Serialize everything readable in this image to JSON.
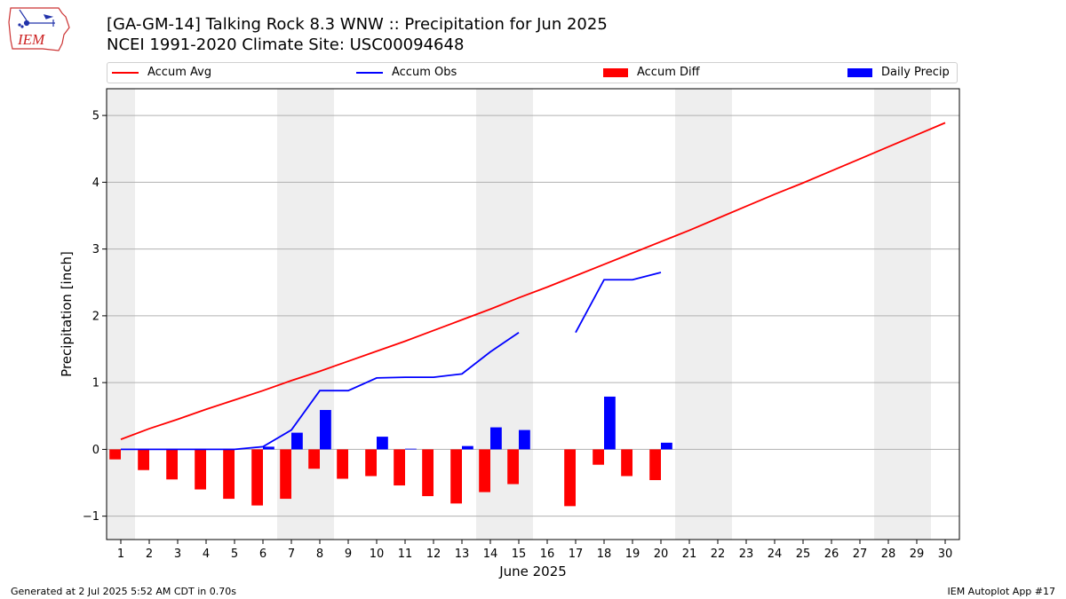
{
  "header": {
    "title_line1": "[GA-GM-14] Talking Rock 8.3 WNW :: Precipitation for Jun 2025",
    "title_line2": "NCEI 1991-2020 Climate Site: USC00094648",
    "logo_text": "IEM"
  },
  "legend": [
    {
      "label": "Accum Avg",
      "color": "#ff0000",
      "kind": "line"
    },
    {
      "label": "Accum Obs",
      "color": "#0000ff",
      "kind": "line"
    },
    {
      "label": "Accum Diff",
      "color": "#ff0000",
      "kind": "bar"
    },
    {
      "label": "Daily Precip",
      "color": "#0000ff",
      "kind": "bar"
    }
  ],
  "footer": {
    "left": "Generated at 2 Jul 2025 5:52 AM CDT in 0.70s",
    "right": "IEM Autoplot App #17"
  },
  "chart_data": {
    "type": "bar",
    "xlabel": "June 2025",
    "ylabel": "Precipitation [inch]",
    "xlim": [
      0.5,
      30.5
    ],
    "ylim": [
      -1.35,
      5.4
    ],
    "yticks": [
      -1,
      0,
      1,
      2,
      3,
      4,
      5
    ],
    "ytick_labels": [
      "−1",
      "0",
      "1",
      "2",
      "3",
      "4",
      "5"
    ],
    "x": [
      1,
      2,
      3,
      4,
      5,
      6,
      7,
      8,
      9,
      10,
      11,
      12,
      13,
      14,
      15,
      16,
      17,
      18,
      19,
      20,
      21,
      22,
      23,
      24,
      25,
      26,
      27,
      28,
      29,
      30
    ],
    "weekend_bands": [
      [
        0.5,
        1.5
      ],
      [
        6.5,
        8.5
      ],
      [
        13.5,
        15.5
      ],
      [
        20.5,
        22.5
      ],
      [
        27.5,
        29.5
      ]
    ],
    "grid": "horizontal",
    "legend_position": "top",
    "series": [
      {
        "name": "Accum Avg",
        "type": "line",
        "color": "#ff0000",
        "values": [
          0.15,
          0.31,
          0.45,
          0.6,
          0.74,
          0.88,
          1.03,
          1.17,
          1.32,
          1.47,
          1.62,
          1.78,
          1.94,
          2.1,
          2.27,
          2.43,
          2.6,
          2.77,
          2.94,
          3.11,
          3.28,
          3.46,
          3.64,
          3.82,
          3.99,
          4.17,
          4.35,
          4.53,
          4.71,
          4.89
        ]
      },
      {
        "name": "Accum Obs",
        "type": "line",
        "color": "#0000ff",
        "values": [
          0.0,
          0.0,
          0.0,
          0.0,
          0.0,
          0.04,
          0.29,
          0.88,
          0.88,
          1.07,
          1.08,
          1.08,
          1.13,
          1.46,
          1.75,
          null,
          1.75,
          2.54,
          2.54,
          2.65,
          null,
          null,
          null,
          null,
          null,
          null,
          null,
          null,
          null,
          null
        ]
      },
      {
        "name": "Accum Diff",
        "type": "bar",
        "color": "#ff0000",
        "offset": -0.2,
        "values": [
          -0.15,
          -0.31,
          -0.45,
          -0.6,
          -0.74,
          -0.84,
          -0.74,
          -0.29,
          -0.44,
          -0.4,
          -0.54,
          -0.7,
          -0.81,
          -0.64,
          -0.52,
          null,
          -0.85,
          -0.23,
          -0.4,
          -0.46,
          null,
          null,
          null,
          null,
          null,
          null,
          null,
          null,
          null,
          null
        ]
      },
      {
        "name": "Daily Precip",
        "type": "bar",
        "color": "#0000ff",
        "offset": 0.2,
        "values": [
          0.0,
          0.0,
          0.0,
          0.0,
          0.0,
          0.04,
          0.25,
          0.59,
          0.0,
          0.19,
          0.01,
          0.0,
          0.05,
          0.33,
          0.29,
          null,
          0.0,
          0.79,
          0.0,
          0.1,
          null,
          null,
          null,
          null,
          null,
          null,
          null,
          null,
          null,
          null
        ]
      }
    ]
  }
}
